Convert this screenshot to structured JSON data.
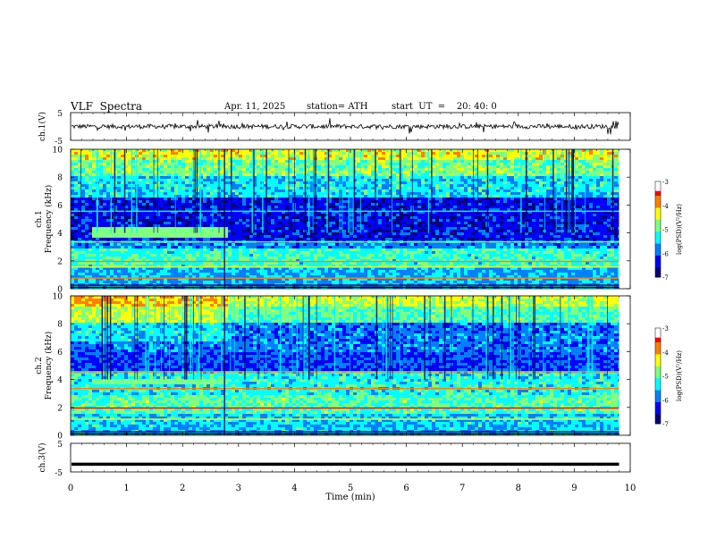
{
  "header": {
    "title": "VLF  Spectra",
    "date": "Apr. 11, 2025",
    "station": "station= ATH",
    "start_ut": "start  UT  =    20: 40: 0"
  },
  "chart_data": [
    {
      "type": "line",
      "panel": "ch1-voltage",
      "ylabel": "ch.1(V)",
      "xlim": [
        0,
        10
      ],
      "ylim": [
        -5,
        5
      ],
      "yticks": [
        "5",
        "-5"
      ],
      "baseline_v": 0,
      "x_end_min": 9.8
    },
    {
      "type": "heatmap",
      "panel": "ch1-spectrogram",
      "ylabel": "ch.1\nFrequency  (kHz)",
      "xlim": [
        0,
        10
      ],
      "ylim": [
        0,
        10
      ],
      "yticks": [
        "0",
        "2",
        "4",
        "6",
        "8",
        "10"
      ],
      "x_end_min": 9.8,
      "colorbar": {
        "label": "log(PSD)(V²/Hz)",
        "range": [
          -7,
          -3
        ],
        "ticks": [
          "-3",
          "-4",
          "-5",
          "-6",
          "-7"
        ]
      },
      "colormap": [
        "#000080",
        "#0000ff",
        "#0080ff",
        "#00ffff",
        "#80ff80",
        "#ffff00",
        "#ff8000",
        "#ff0000"
      ]
    },
    {
      "type": "heatmap",
      "panel": "ch2-spectrogram",
      "ylabel": "ch.2\nFrequency  (kHz)",
      "xlim": [
        0,
        10
      ],
      "ylim": [
        0,
        10
      ],
      "yticks": [
        "0",
        "2",
        "4",
        "6",
        "8",
        "10"
      ],
      "x_end_min": 9.8,
      "colorbar": {
        "label": "log(PSD)(V²/Hz)",
        "range": [
          -7,
          -3
        ],
        "ticks": [
          "-3",
          "-4",
          "-5",
          "-6",
          "-7"
        ]
      },
      "colormap": [
        "#000080",
        "#0000ff",
        "#0080ff",
        "#00ffff",
        "#80ff80",
        "#ffff00",
        "#ff8000",
        "#ff0000"
      ]
    },
    {
      "type": "line",
      "panel": "ch3-voltage",
      "ylabel": "ch.3(V)",
      "xlim": [
        0,
        10
      ],
      "ylim": [
        -5,
        5
      ],
      "yticks": [
        "5",
        "-5"
      ],
      "baseline_v": -2.3,
      "x_end_min": 9.8
    }
  ],
  "x_axis": {
    "label": "Time  (min)",
    "ticks": [
      "0",
      "1",
      "2",
      "3",
      "4",
      "5",
      "6",
      "7",
      "8",
      "9",
      "10"
    ]
  }
}
